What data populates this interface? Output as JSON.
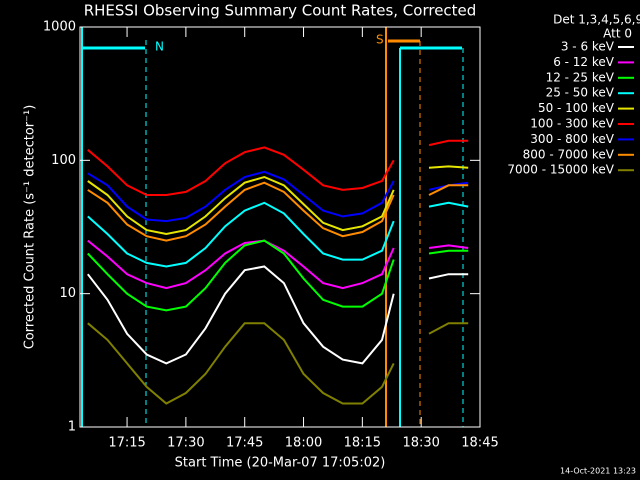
{
  "chart_data": {
    "type": "line",
    "title": "RHESSI Observing Summary Count Rates, Corrected",
    "xlabel": "Start Time (20-Mar-07 17:05:02)",
    "ylabel": "Corrected Count Rate (s⁻¹ detector⁻¹)",
    "legend_title": [
      "Det 1,3,4,5,6,9,",
      "Att 0"
    ],
    "footer": "14-Oct-2021 13:23",
    "annotations": [
      "N",
      "S"
    ],
    "log_y": true,
    "legend": "outside-right",
    "xlim": [
      3,
      105
    ],
    "xticks": [
      {
        "value": 15,
        "label": "17:15"
      },
      {
        "value": 30,
        "label": "17:30"
      },
      {
        "value": 45,
        "label": "17:45"
      },
      {
        "value": 60,
        "label": "18:00"
      },
      {
        "value": 75,
        "label": "18:15"
      },
      {
        "value": 90,
        "label": "18:30"
      },
      {
        "value": 105,
        "label": "18:45"
      }
    ],
    "ylim": [
      1,
      1000
    ],
    "yticks": [
      1,
      10,
      100,
      1000
    ],
    "x": [
      5,
      10,
      15,
      20,
      25,
      30,
      35,
      40,
      45,
      50,
      55,
      60,
      65,
      70,
      75,
      80,
      83,
      86,
      92,
      97,
      102
    ],
    "series": [
      {
        "name": "3 - 6 keV",
        "color": "#ffffff",
        "values": [
          14,
          9,
          5,
          3.5,
          3,
          3.5,
          5.5,
          10,
          15,
          16,
          12,
          6,
          4,
          3.2,
          3,
          4.5,
          10,
          null,
          13,
          14,
          14
        ]
      },
      {
        "name": "6 - 12 keV",
        "color": "#ff00ff",
        "values": [
          25,
          19,
          14,
          12,
          11,
          12,
          15,
          20,
          24,
          25,
          21,
          16,
          12,
          11,
          12,
          14,
          22,
          null,
          22,
          23,
          22
        ]
      },
      {
        "name": "12 - 25 keV",
        "color": "#00ff00",
        "values": [
          20,
          14,
          10,
          8,
          7.5,
          8,
          11,
          17,
          23,
          25,
          20,
          13,
          9,
          8,
          8,
          10,
          18,
          null,
          20,
          21,
          21
        ]
      },
      {
        "name": "25 - 50 keV",
        "color": "#00ffff",
        "values": [
          38,
          28,
          20,
          17,
          16,
          17,
          22,
          32,
          42,
          48,
          40,
          28,
          20,
          18,
          18,
          21,
          35,
          null,
          45,
          48,
          45
        ]
      },
      {
        "name": "50 - 100 keV",
        "color": "#e6e600",
        "values": [
          70,
          55,
          38,
          30,
          28,
          30,
          38,
          52,
          68,
          75,
          65,
          47,
          34,
          30,
          32,
          38,
          60,
          null,
          88,
          90,
          88
        ]
      },
      {
        "name": "100 - 300 keV",
        "color": "#ff0000",
        "values": [
          120,
          90,
          65,
          55,
          55,
          58,
          70,
          95,
          115,
          125,
          110,
          85,
          65,
          60,
          62,
          70,
          100,
          null,
          130,
          140,
          140
        ]
      },
      {
        "name": "300 - 800 keV",
        "color": "#0000ff",
        "values": [
          80,
          65,
          45,
          36,
          35,
          37,
          45,
          60,
          75,
          82,
          72,
          55,
          42,
          38,
          40,
          48,
          70,
          null,
          60,
          65,
          68
        ]
      },
      {
        "name": "800 - 7000 keV",
        "color": "#ff8c00",
        "values": [
          60,
          48,
          33,
          27,
          25,
          27,
          33,
          45,
          60,
          68,
          58,
          42,
          31,
          27,
          29,
          35,
          55,
          null,
          55,
          65,
          65
        ]
      },
      {
        "name": "7000 - 15000 keV",
        "color": "#808000",
        "values": [
          6,
          4.5,
          3,
          2,
          1.5,
          1.8,
          2.5,
          4,
          6,
          6,
          4.5,
          2.5,
          1.8,
          1.5,
          1.5,
          2,
          3,
          null,
          5,
          6,
          6
        ]
      }
    ]
  }
}
